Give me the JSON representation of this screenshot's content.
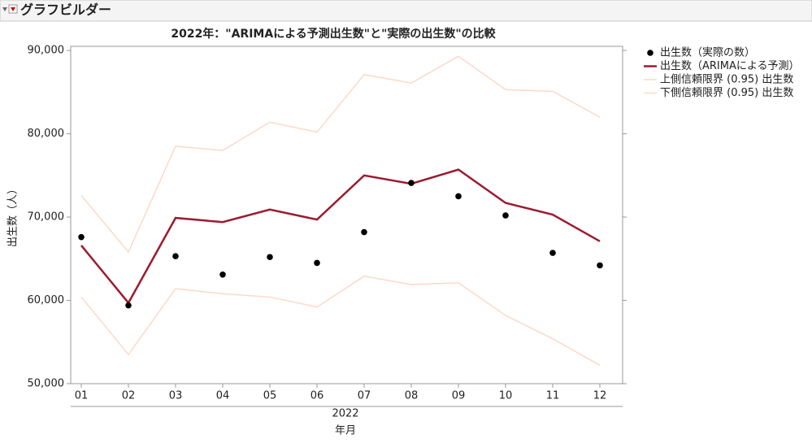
{
  "window_title": "グラフビルダー",
  "chart_data": {
    "type": "line",
    "title": "2022年：\"ARIMAによる予測出生数\"と\"実際の出生数\"の比較",
    "x_label": "年月",
    "x_group": "2022",
    "y_label": "出生数（人）",
    "categories": [
      "01",
      "02",
      "03",
      "04",
      "05",
      "06",
      "07",
      "08",
      "09",
      "10",
      "11",
      "12"
    ],
    "ylim": [
      50000,
      90500
    ],
    "yticks": [
      {
        "value": 50000,
        "label": "50,000"
      },
      {
        "value": 60000,
        "label": "60,000"
      },
      {
        "value": 70000,
        "label": "70,000"
      },
      {
        "value": 80000,
        "label": "80,000"
      },
      {
        "value": 90000,
        "label": "90,000"
      }
    ],
    "grid": false,
    "legend": "right",
    "series": [
      {
        "name": "出生数（実際の数）",
        "color": "#000000",
        "kind": "scatter",
        "values": [
          67600,
          59400,
          65300,
          63100,
          65200,
          64500,
          68200,
          74100,
          72500,
          70200,
          65700,
          64200
        ]
      },
      {
        "name": "出生数（ARIMAによる予測）",
        "color": "#9b1b30",
        "kind": "line",
        "values": [
          66600,
          59700,
          69900,
          69400,
          70900,
          69700,
          75000,
          74000,
          75700,
          71700,
          70300,
          67100
        ]
      },
      {
        "name": "上側信頼限界 (0.95) 出生数",
        "color": "#fcd9c8",
        "kind": "line",
        "values": [
          72600,
          65800,
          78500,
          78000,
          81400,
          80200,
          87100,
          86100,
          89300,
          85300,
          85100,
          82000
        ]
      },
      {
        "name": "下側信頼限界 (0.95) 出生数",
        "color": "#fcd9c8",
        "kind": "line",
        "values": [
          60400,
          53500,
          61400,
          60800,
          60400,
          59200,
          62900,
          61900,
          62100,
          58200,
          55400,
          52200
        ]
      }
    ]
  }
}
